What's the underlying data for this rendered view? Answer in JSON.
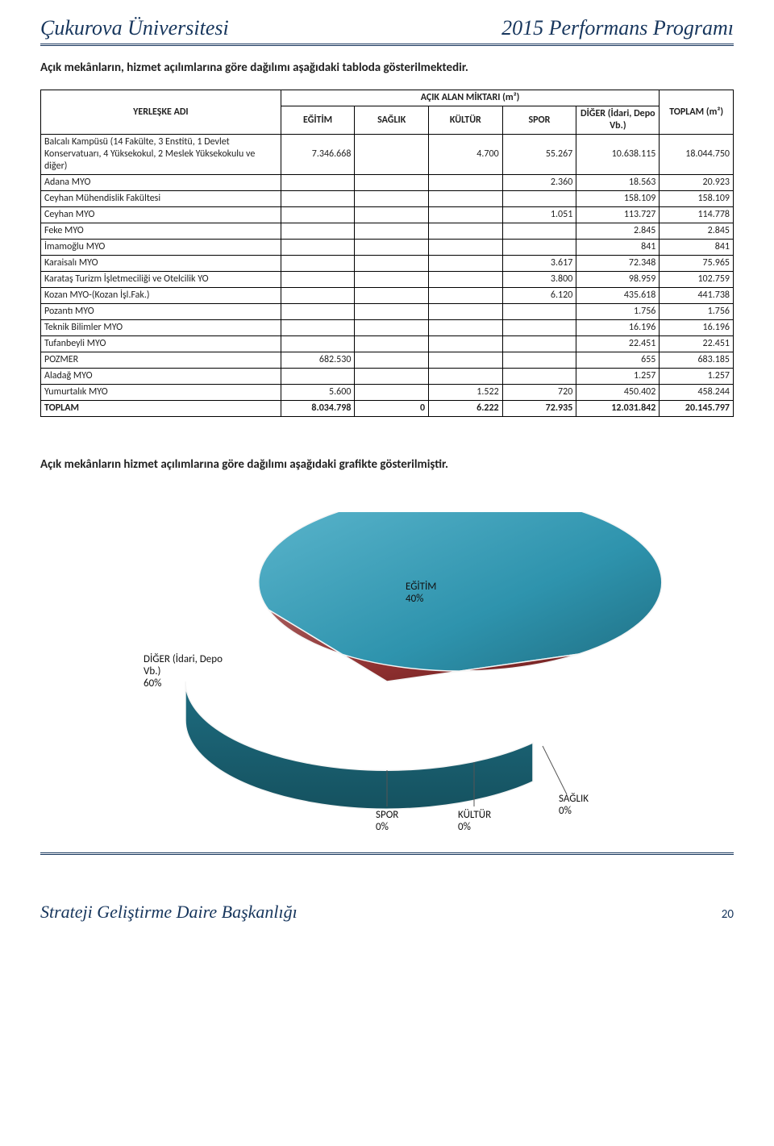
{
  "header": {
    "left": "Çukurova Üniversitesi",
    "right": "2015 Performans Programı"
  },
  "intro1": "Açık mekânların, hizmet açılımlarına göre dağılımı aşağıdaki tabloda gösterilmektedir.",
  "table": {
    "group_header": "AÇIK ALAN MİKTARI (m²)",
    "columns": {
      "yerleke": "YERLEŞKE ADI",
      "egitim": "EĞİTİM",
      "saglik": "SAĞLIK",
      "kultur": "KÜLTÜR",
      "spor": "SPOR",
      "diger": "DİĞER (İdari, Depo Vb.)",
      "toplam": "TOPLAM (m²)"
    },
    "rows": [
      {
        "label": "Balcalı Kampüsü (14 Fakülte, 3 Enstitü, 1 Devlet Konservatuarı, 4 Yüksekokul, 2 Meslek Yüksekokulu ve diğer)",
        "egitim": "7.346.668",
        "saglik": "",
        "kultur": "4.700",
        "spor": "55.267",
        "diger": "10.638.115",
        "toplam": "18.044.750"
      },
      {
        "label": "Adana MYO",
        "egitim": "",
        "saglik": "",
        "kultur": "",
        "spor": "2.360",
        "diger": "18.563",
        "toplam": "20.923"
      },
      {
        "label": "Ceyhan Mühendislik Fakültesi",
        "egitim": "",
        "saglik": "",
        "kultur": "",
        "spor": "",
        "diger": "158.109",
        "toplam": "158.109"
      },
      {
        "label": "Ceyhan MYO",
        "egitim": "",
        "saglik": "",
        "kultur": "",
        "spor": "1.051",
        "diger": "113.727",
        "toplam": "114.778"
      },
      {
        "label": "Feke MYO",
        "egitim": "",
        "saglik": "",
        "kultur": "",
        "spor": "",
        "diger": "2.845",
        "toplam": "2.845"
      },
      {
        "label": "İmamoğlu MYO",
        "egitim": "",
        "saglik": "",
        "kultur": "",
        "spor": "",
        "diger": "841",
        "toplam": "841"
      },
      {
        "label": "Karaisalı MYO",
        "egitim": "",
        "saglik": "",
        "kultur": "",
        "spor": "3.617",
        "diger": "72.348",
        "toplam": "75.965"
      },
      {
        "label": "Karataş Turizm İşletmeciliği ve Otelcilik YO",
        "egitim": "",
        "saglik": "",
        "kultur": "",
        "spor": "3.800",
        "diger": "98.959",
        "toplam": "102.759"
      },
      {
        "label": "Kozan MYO-(Kozan İşl.Fak.)",
        "egitim": "",
        "saglik": "",
        "kultur": "",
        "spor": "6.120",
        "diger": "435.618",
        "toplam": "441.738"
      },
      {
        "label": "Pozantı MYO",
        "egitim": "",
        "saglik": "",
        "kultur": "",
        "spor": "",
        "diger": "1.756",
        "toplam": "1.756"
      },
      {
        "label": "Teknik Bilimler MYO",
        "egitim": "",
        "saglik": "",
        "kultur": "",
        "spor": "",
        "diger": "16.196",
        "toplam": "16.196"
      },
      {
        "label": "Tufanbeyli MYO",
        "egitim": "",
        "saglik": "",
        "kultur": "",
        "spor": "",
        "diger": "22.451",
        "toplam": "22.451"
      },
      {
        "label": "POZMER",
        "egitim": "682.530",
        "saglik": "",
        "kultur": "",
        "spor": "",
        "diger": "655",
        "toplam": "683.185"
      },
      {
        "label": "Aladağ MYO",
        "egitim": "",
        "saglik": "",
        "kultur": "",
        "spor": "",
        "diger": "1.257",
        "toplam": "1.257"
      },
      {
        "label": "Yumurtalık MYO",
        "egitim": "5.600",
        "saglik": "",
        "kultur": "1.522",
        "spor": "720",
        "diger": "450.402",
        "toplam": "458.244"
      },
      {
        "label": "TOPLAM",
        "egitim": "8.034.798",
        "saglik": "0",
        "kultur": "6.222",
        "spor": "72.935",
        "diger": "12.031.842",
        "toplam": "20.145.797"
      }
    ]
  },
  "intro2": "Açık mekânların hizmet açılımlarına göre dağılımı aşağıdaki grafikte gösterilmiştir.",
  "chart": {
    "type": "pie-3d",
    "background_color": "#ffffff",
    "edge_color": "#f5f5f5",
    "slices": [
      {
        "name": "egitim",
        "label": "EĞİTİM\n40%",
        "value": 40,
        "color": "#8d2f2f"
      },
      {
        "name": "diger",
        "label": "DİĞER (İdari, Depo\nVb.)\n60%",
        "value": 60,
        "color": "#2e93ad"
      },
      {
        "name": "spor",
        "label": "SPOR\n0%",
        "value": 0
      },
      {
        "name": "kultur",
        "label": "KÜLTÜR\n0%",
        "value": 0
      },
      {
        "name": "saglik",
        "label": "SAĞLIK\n0%",
        "value": 0
      }
    ],
    "label_fontsize": 13,
    "highlights": {
      "egitim_light": "#a55a5a",
      "diger_light": "#5cb6cd",
      "diger_dark": "#1e6c80",
      "diger_darker": "#155260"
    }
  },
  "footer": {
    "left": "Strateji Geliştirme Daire Başkanlığı",
    "page": "20"
  }
}
